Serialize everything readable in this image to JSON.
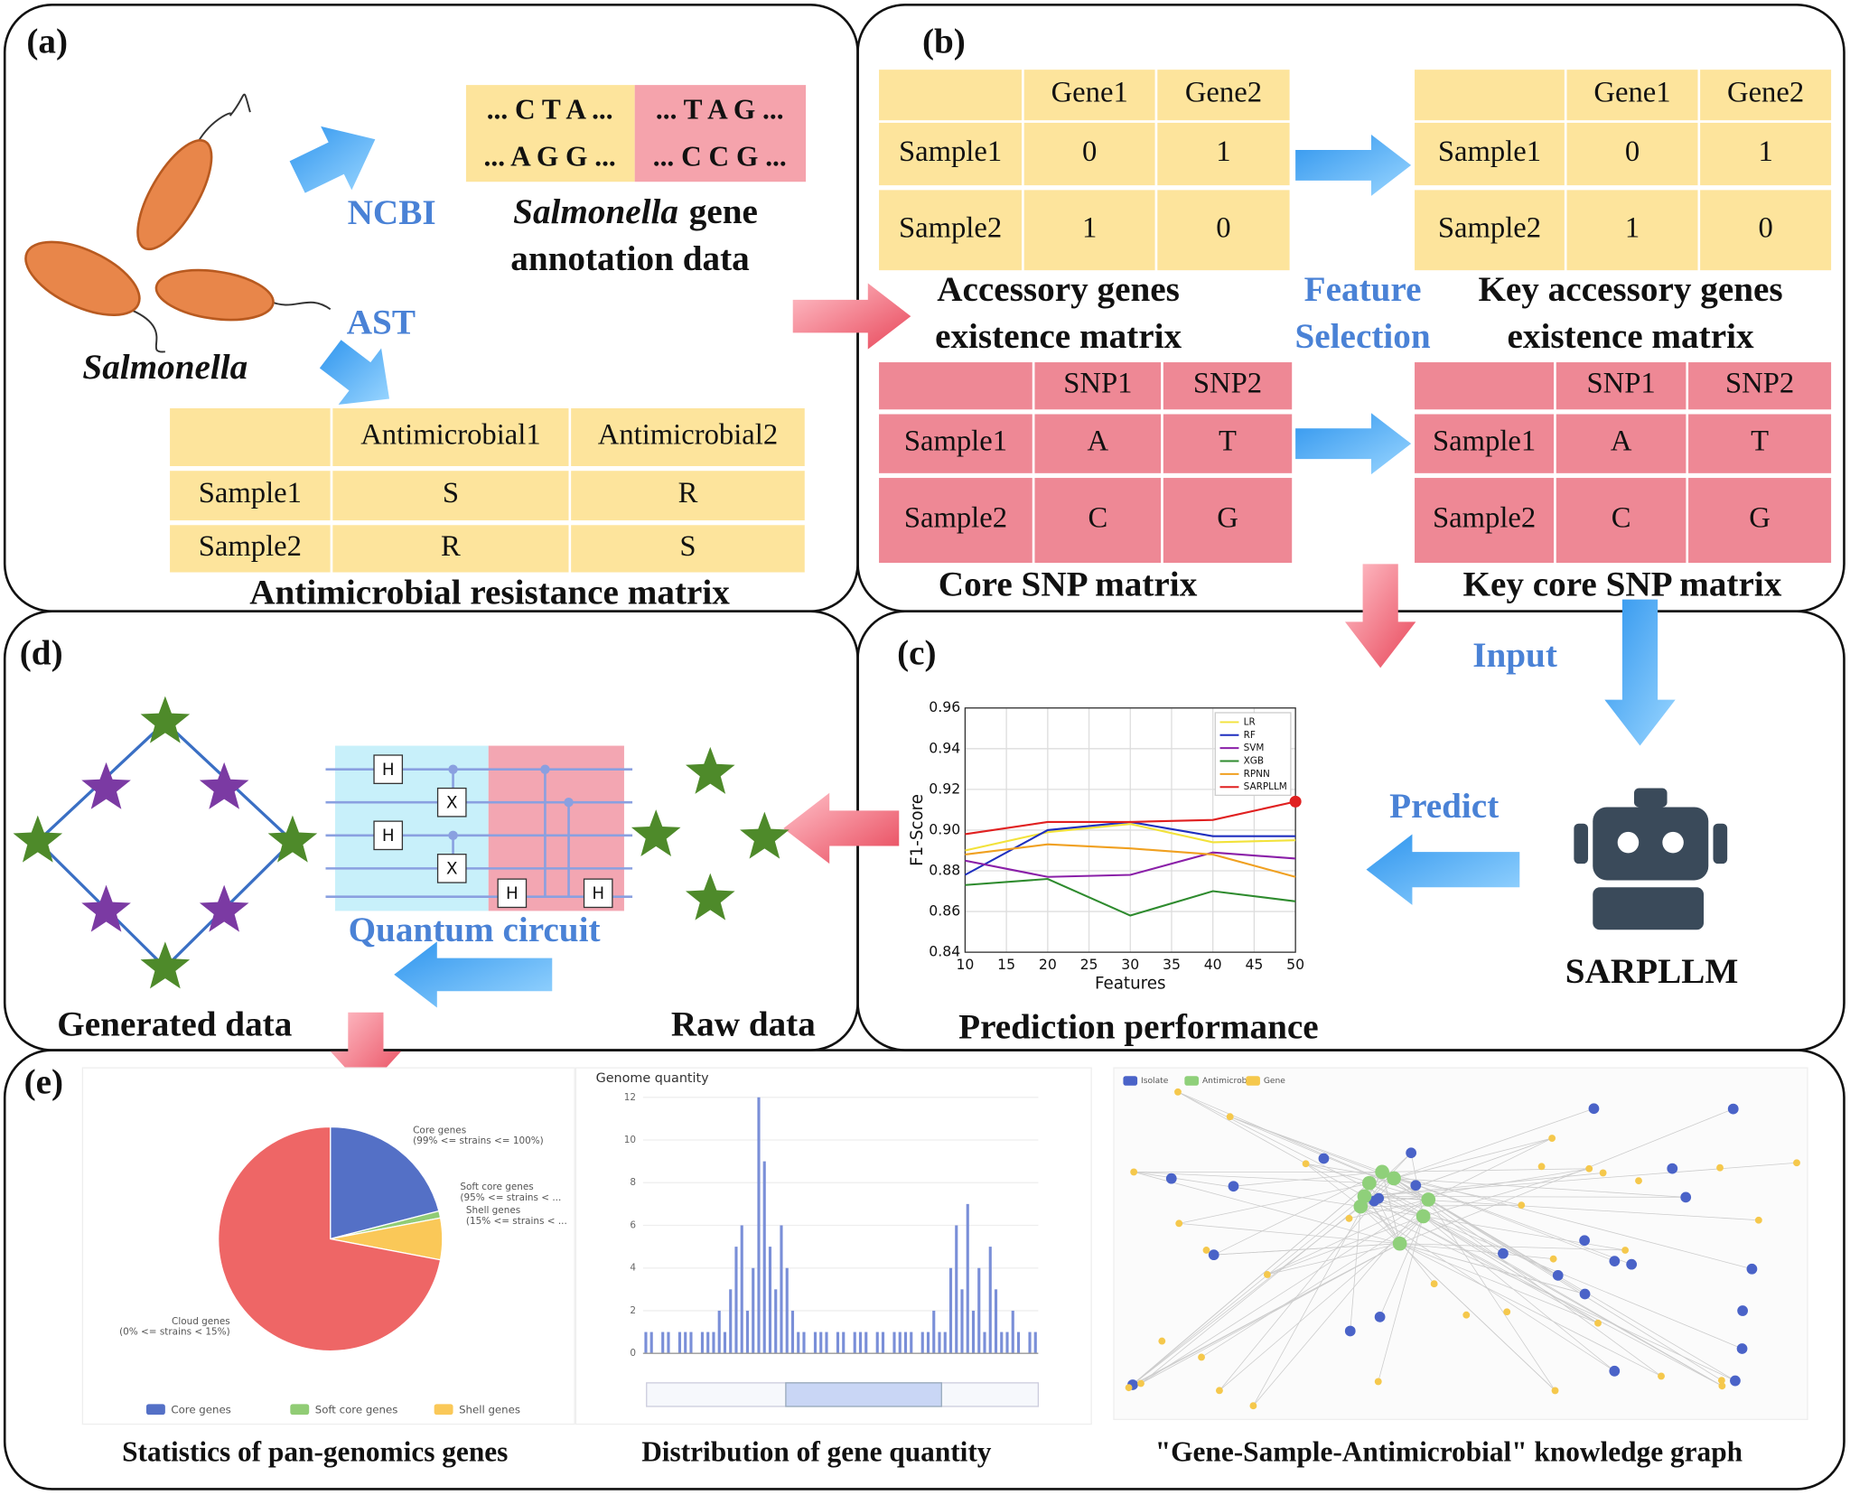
{
  "panel_a": {
    "label": "(a)",
    "organism": "Salmonella",
    "source_labels": [
      "NCBI",
      "AST"
    ],
    "sequences": [
      [
        "... C T A ...",
        "... T A G ..."
      ],
      [
        "... A G G ...",
        "... C C G ..."
      ]
    ],
    "annotation": {
      "organism": "Salmonella",
      "line1": "gene",
      "line2": "annotation data"
    },
    "resistance_table": {
      "columns": [
        "Antimicrobial1",
        "Antimicrobial2"
      ],
      "rows": [
        [
          "Sample1",
          "S",
          "R"
        ],
        [
          "Sample2",
          "R",
          "S"
        ]
      ],
      "caption": "Antimicrobial resistance matrix"
    }
  },
  "panel_b": {
    "label": "(b)",
    "accessory_table": {
      "columns": [
        "Gene1",
        "Gene2"
      ],
      "rows": [
        [
          "Sample1",
          0,
          1
        ],
        [
          "Sample2",
          1,
          0
        ]
      ],
      "caption": [
        "Accessory genes",
        "existence matrix"
      ]
    },
    "key_accessory_table": {
      "columns": [
        "Gene1",
        "Gene2"
      ],
      "rows": [
        [
          "Sample1",
          0,
          1
        ],
        [
          "Sample2",
          1,
          0
        ]
      ],
      "caption": [
        "Key accessory genes",
        "existence matrix"
      ]
    },
    "feature_selection": [
      "Feature",
      "Selection"
    ],
    "snp_table": {
      "columns": [
        "SNP1",
        "SNP2"
      ],
      "rows": [
        [
          "Sample1",
          "A",
          "T"
        ],
        [
          "Sample2",
          "C",
          "G"
        ]
      ],
      "caption": [
        "Core SNP matrix"
      ]
    },
    "key_snp_table": {
      "columns": [
        "SNP1",
        "SNP2"
      ],
      "rows": [
        [
          "Sample1",
          "A",
          "T"
        ],
        [
          "Sample2",
          "C",
          "G"
        ]
      ],
      "caption": [
        "Key core SNP matrix"
      ]
    }
  },
  "panel_c": {
    "label": "(c)",
    "input_label": "Input",
    "predict_label": "Predict",
    "model": "SARPLLM",
    "caption": "Prediction performance",
    "chart_data": {
      "type": "line",
      "x_label": "Features",
      "y_label": "F1-Score",
      "x": [
        10,
        20,
        30,
        40,
        50
      ],
      "xlim": [
        10,
        50
      ],
      "xticks": [
        10,
        15,
        20,
        25,
        30,
        35,
        40,
        45,
        50
      ],
      "ylim": [
        0.84,
        0.96
      ],
      "yticks": [
        0.84,
        0.86,
        0.88,
        {
          "value": 0.9,
          "label": "0.90"
        },
        0.92,
        0.94,
        0.96
      ],
      "grid": true,
      "legend": "upper right",
      "series": [
        {
          "name": "LR",
          "color": "#f2e23a",
          "values": [
            0.89,
            0.899,
            0.903,
            0.894,
            0.895
          ]
        },
        {
          "name": "RF",
          "color": "#1f2fbf",
          "values": [
            0.878,
            0.9,
            0.904,
            0.897,
            0.897
          ]
        },
        {
          "name": "SVM",
          "color": "#8a1fa8",
          "values": [
            0.885,
            0.877,
            0.878,
            0.889,
            0.886
          ]
        },
        {
          "name": "XGB",
          "color": "#2e8b2e",
          "values": [
            0.873,
            0.876,
            0.858,
            0.87,
            0.865
          ]
        },
        {
          "name": "RPNN",
          "color": "#f0a020",
          "values": [
            0.888,
            0.893,
            0.891,
            0.888,
            0.877
          ]
        },
        {
          "name": "SARPLLM",
          "color": "#e02020",
          "values": [
            0.898,
            0.904,
            0.904,
            0.905,
            0.914
          ]
        }
      ]
    }
  },
  "panel_d": {
    "label": "(d)",
    "circuit_label": "Quantum circuit",
    "gates": [
      "H",
      "X",
      "H",
      "X",
      "H",
      "H"
    ],
    "generated_label": "Generated data",
    "raw_label": "Raw data"
  },
  "panel_e": {
    "label": "(e)",
    "pie": {
      "type": "pie",
      "categories": [
        "Core genes",
        "Soft core genes",
        "Shell genes",
        "Cloud genes"
      ],
      "values": [
        21,
        1,
        6,
        72
      ],
      "colors": [
        "#5470c6",
        "#91cc75",
        "#fac858",
        "#ee6666"
      ],
      "labels": [
        [
          "Core genes",
          "(99% <= strains <= 100%)"
        ],
        [
          "Soft core genes",
          "(95% <= strains < ..."
        ],
        [
          "Shell genes",
          "(15% <= strains < ..."
        ],
        [
          "Cloud genes",
          "(0% <= strains < 15%)"
        ]
      ],
      "caption": "Statistics of pan-genomics genes"
    },
    "histogram": {
      "type": "bar",
      "title": "Genome quantity",
      "color": "#7a8fd8",
      "ylim": [
        0,
        12
      ],
      "yticks": [
        0,
        2,
        4,
        6,
        8,
        10,
        12
      ],
      "values": [
        1,
        1,
        0,
        1,
        1,
        0,
        1,
        1,
        1,
        0,
        1,
        1,
        1,
        2,
        1,
        3,
        5,
        6,
        2,
        4,
        12,
        9,
        5,
        3,
        6,
        4,
        2,
        1,
        1,
        0,
        1,
        1,
        1,
        0,
        1,
        1,
        0,
        1,
        1,
        1,
        0,
        1,
        1,
        0,
        1,
        1,
        1,
        1,
        0,
        1,
        1,
        2,
        1,
        1,
        4,
        6,
        3,
        7,
        2,
        4,
        1,
        5,
        3,
        1,
        1,
        2,
        1,
        0,
        1,
        1
      ],
      "caption": "Distribution of  gene quantity"
    },
    "graph": {
      "legend": [
        "Isolate",
        "Antimicrobial",
        "Gene"
      ],
      "colors": [
        "#4a63c8",
        "#8fd07a",
        "#f5c84c"
      ],
      "caption": "\"Gene-Sample-Antimicrobial\" knowledge graph"
    }
  }
}
